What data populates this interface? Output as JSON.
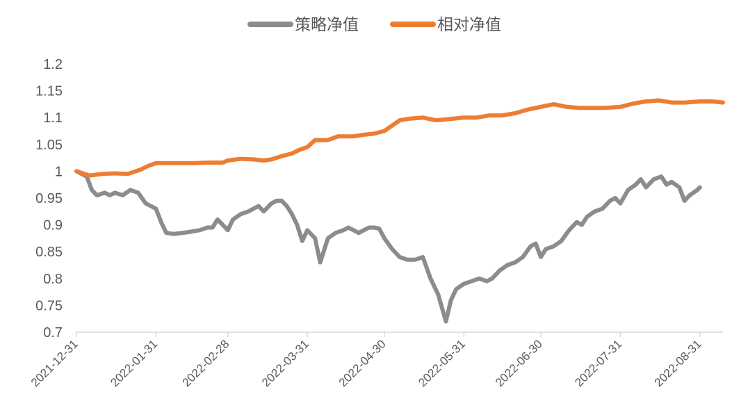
{
  "chart_data": {
    "type": "line",
    "title": "",
    "xlabel": "",
    "ylabel": "",
    "ylim": [
      0.7,
      1.2
    ],
    "yticks": [
      "0.7",
      "0.75",
      "0.8",
      "0.85",
      "0.9",
      "0.95",
      "1",
      "1.05",
      "1.1",
      "1.15",
      "1.2"
    ],
    "xticks": [
      "2021-12-31",
      "2022-01-31",
      "2022-02-28",
      "2022-03-31",
      "2022-04-30",
      "2022-05-31",
      "2022-06-30",
      "2022-07-31",
      "2022-08-31"
    ],
    "xrange": [
      "2021-12-31",
      "2022-09-09"
    ],
    "legend_position": "top-center",
    "grid": false,
    "series": [
      {
        "name": "策略净值",
        "color": "#8c8c8c",
        "points": [
          [
            "2021-12-31",
            1.0
          ],
          [
            "2022-01-04",
            0.99
          ],
          [
            "2022-01-06",
            0.965
          ],
          [
            "2022-01-08",
            0.955
          ],
          [
            "2022-01-11",
            0.96
          ],
          [
            "2022-01-13",
            0.955
          ],
          [
            "2022-01-15",
            0.96
          ],
          [
            "2022-01-18",
            0.955
          ],
          [
            "2022-01-21",
            0.965
          ],
          [
            "2022-01-24",
            0.96
          ],
          [
            "2022-01-27",
            0.94
          ],
          [
            "2022-01-31",
            0.93
          ],
          [
            "2022-02-02",
            0.905
          ],
          [
            "2022-02-04",
            0.885
          ],
          [
            "2022-02-07",
            0.883
          ],
          [
            "2022-02-12",
            0.886
          ],
          [
            "2022-02-17",
            0.89
          ],
          [
            "2022-02-20",
            0.895
          ],
          [
            "2022-02-22",
            0.895
          ],
          [
            "2022-02-24",
            0.91
          ],
          [
            "2022-02-26",
            0.9
          ],
          [
            "2022-02-28",
            0.89
          ],
          [
            "2022-03-02",
            0.91
          ],
          [
            "2022-03-05",
            0.92
          ],
          [
            "2022-03-08",
            0.925
          ],
          [
            "2022-03-10",
            0.93
          ],
          [
            "2022-03-12",
            0.935
          ],
          [
            "2022-03-14",
            0.925
          ],
          [
            "2022-03-17",
            0.94
          ],
          [
            "2022-03-19",
            0.945
          ],
          [
            "2022-03-21",
            0.945
          ],
          [
            "2022-03-23",
            0.935
          ],
          [
            "2022-03-25",
            0.92
          ],
          [
            "2022-03-27",
            0.9
          ],
          [
            "2022-03-29",
            0.87
          ],
          [
            "2022-03-31",
            0.89
          ],
          [
            "2022-04-03",
            0.875
          ],
          [
            "2022-04-05",
            0.83
          ],
          [
            "2022-04-08",
            0.875
          ],
          [
            "2022-04-11",
            0.885
          ],
          [
            "2022-04-14",
            0.89
          ],
          [
            "2022-04-16",
            0.895
          ],
          [
            "2022-04-18",
            0.89
          ],
          [
            "2022-04-20",
            0.885
          ],
          [
            "2022-04-22",
            0.89
          ],
          [
            "2022-04-24",
            0.895
          ],
          [
            "2022-04-26",
            0.895
          ],
          [
            "2022-04-28",
            0.893
          ],
          [
            "2022-04-30",
            0.875
          ],
          [
            "2022-05-03",
            0.855
          ],
          [
            "2022-05-06",
            0.84
          ],
          [
            "2022-05-09",
            0.835
          ],
          [
            "2022-05-12",
            0.835
          ],
          [
            "2022-05-15",
            0.84
          ],
          [
            "2022-05-18",
            0.8
          ],
          [
            "2022-05-21",
            0.77
          ],
          [
            "2022-05-24",
            0.72
          ],
          [
            "2022-05-26",
            0.76
          ],
          [
            "2022-05-28",
            0.78
          ],
          [
            "2022-05-31",
            0.79
          ],
          [
            "2022-06-03",
            0.795
          ],
          [
            "2022-06-06",
            0.8
          ],
          [
            "2022-06-09",
            0.795
          ],
          [
            "2022-06-11",
            0.8
          ],
          [
            "2022-06-14",
            0.815
          ],
          [
            "2022-06-17",
            0.825
          ],
          [
            "2022-06-20",
            0.83
          ],
          [
            "2022-06-23",
            0.84
          ],
          [
            "2022-06-26",
            0.86
          ],
          [
            "2022-06-28",
            0.865
          ],
          [
            "2022-06-30",
            0.84
          ],
          [
            "2022-07-02",
            0.855
          ],
          [
            "2022-07-05",
            0.86
          ],
          [
            "2022-07-08",
            0.87
          ],
          [
            "2022-07-11",
            0.89
          ],
          [
            "2022-07-14",
            0.905
          ],
          [
            "2022-07-16",
            0.9
          ],
          [
            "2022-07-18",
            0.915
          ],
          [
            "2022-07-21",
            0.925
          ],
          [
            "2022-07-24",
            0.93
          ],
          [
            "2022-07-27",
            0.945
          ],
          [
            "2022-07-29",
            0.95
          ],
          [
            "2022-07-31",
            0.94
          ],
          [
            "2022-08-03",
            0.965
          ],
          [
            "2022-08-06",
            0.975
          ],
          [
            "2022-08-08",
            0.985
          ],
          [
            "2022-08-10",
            0.97
          ],
          [
            "2022-08-13",
            0.985
          ],
          [
            "2022-08-16",
            0.99
          ],
          [
            "2022-08-18",
            0.975
          ],
          [
            "2022-08-20",
            0.98
          ],
          [
            "2022-08-23",
            0.97
          ],
          [
            "2022-08-25",
            0.945
          ],
          [
            "2022-08-27",
            0.955
          ],
          [
            "2022-08-30",
            0.965
          ],
          [
            "2022-08-31",
            0.97
          ]
        ]
      },
      {
        "name": "相对净值",
        "color": "#ed7d31",
        "points": [
          [
            "2021-12-31",
            1.0
          ],
          [
            "2022-01-05",
            0.992
          ],
          [
            "2022-01-10",
            0.995
          ],
          [
            "2022-01-15",
            0.996
          ],
          [
            "2022-01-20",
            0.995
          ],
          [
            "2022-01-25",
            1.003
          ],
          [
            "2022-01-28",
            1.01
          ],
          [
            "2022-01-31",
            1.015
          ],
          [
            "2022-02-05",
            1.015
          ],
          [
            "2022-02-15",
            1.015
          ],
          [
            "2022-02-20",
            1.016
          ],
          [
            "2022-02-26",
            1.016
          ],
          [
            "2022-02-28",
            1.02
          ],
          [
            "2022-03-05",
            1.023
          ],
          [
            "2022-03-10",
            1.022
          ],
          [
            "2022-03-14",
            1.02
          ],
          [
            "2022-03-17",
            1.022
          ],
          [
            "2022-03-21",
            1.028
          ],
          [
            "2022-03-25",
            1.033
          ],
          [
            "2022-03-28",
            1.04
          ],
          [
            "2022-03-31",
            1.045
          ],
          [
            "2022-04-03",
            1.058
          ],
          [
            "2022-04-08",
            1.058
          ],
          [
            "2022-04-12",
            1.065
          ],
          [
            "2022-04-18",
            1.065
          ],
          [
            "2022-04-22",
            1.068
          ],
          [
            "2022-04-26",
            1.07
          ],
          [
            "2022-04-30",
            1.075
          ],
          [
            "2022-05-03",
            1.085
          ],
          [
            "2022-05-06",
            1.095
          ],
          [
            "2022-05-10",
            1.098
          ],
          [
            "2022-05-15",
            1.1
          ],
          [
            "2022-05-20",
            1.095
          ],
          [
            "2022-05-25",
            1.097
          ],
          [
            "2022-05-31",
            1.1
          ],
          [
            "2022-06-05",
            1.1
          ],
          [
            "2022-06-10",
            1.104
          ],
          [
            "2022-06-15",
            1.104
          ],
          [
            "2022-06-20",
            1.108
          ],
          [
            "2022-06-25",
            1.115
          ],
          [
            "2022-06-30",
            1.12
          ],
          [
            "2022-07-05",
            1.125
          ],
          [
            "2022-07-10",
            1.12
          ],
          [
            "2022-07-15",
            1.118
          ],
          [
            "2022-07-20",
            1.118
          ],
          [
            "2022-07-25",
            1.118
          ],
          [
            "2022-07-31",
            1.12
          ],
          [
            "2022-08-05",
            1.126
          ],
          [
            "2022-08-10",
            1.13
          ],
          [
            "2022-08-15",
            1.132
          ],
          [
            "2022-08-20",
            1.128
          ],
          [
            "2022-08-25",
            1.128
          ],
          [
            "2022-08-31",
            1.13
          ],
          [
            "2022-09-05",
            1.13
          ],
          [
            "2022-09-09",
            1.128
          ]
        ]
      }
    ]
  }
}
